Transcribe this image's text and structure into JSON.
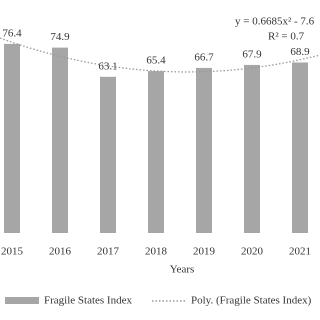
{
  "chart_data": {
    "type": "bar",
    "categories": [
      "2015",
      "2016",
      "2017",
      "2018",
      "2019",
      "2020",
      "2021"
    ],
    "series": [
      {
        "name": "Fragile States Index",
        "color": "#a6a6a6",
        "values": [
          76.4,
          74.9,
          63.1,
          65.4,
          66.7,
          67.9,
          68.9
        ]
      }
    ],
    "trendline_name": "Poly. (Fragile States Index)",
    "trendline_equation": "y = 0.6685x² - 7.6",
    "trendline_r2": "R² = 0.7",
    "x_label": "Years",
    "ylim": [
      0,
      80
    ]
  }
}
